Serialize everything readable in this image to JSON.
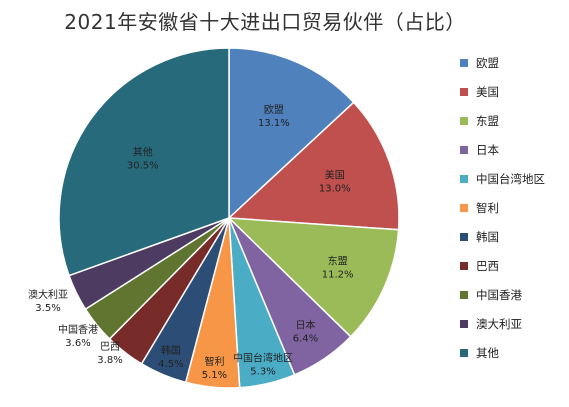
{
  "chart_data": {
    "type": "pie",
    "title": "2021年安徽省十大进出口贸易伙伴（占比）",
    "unit": "%",
    "slices": [
      {
        "name": "欧盟",
        "value": 13.1,
        "label": "13.1%",
        "color": "#4f81bd"
      },
      {
        "name": "美国",
        "value": 13.0,
        "label": "13.0%",
        "color": "#c0504d"
      },
      {
        "name": "东盟",
        "value": 11.2,
        "label": "11.2%",
        "color": "#9bbb59"
      },
      {
        "name": "日本",
        "value": 6.4,
        "label": "6.4%",
        "color": "#8064a2"
      },
      {
        "name": "中国台湾地区",
        "value": 5.3,
        "label": "5.3%",
        "color": "#4bacc6"
      },
      {
        "name": "智利",
        "value": 5.1,
        "label": "5.1%",
        "color": "#f79646"
      },
      {
        "name": "韩国",
        "value": 4.5,
        "label": "4.5%",
        "color": "#2c4d75"
      },
      {
        "name": "巴西",
        "value": 3.8,
        "label": "3.8%",
        "color": "#772c2a"
      },
      {
        "name": "中国香港",
        "value": 3.6,
        "label": "3.6%",
        "color": "#5f7530"
      },
      {
        "name": "澳大利亚",
        "value": 3.5,
        "label": "3.5%",
        "color": "#4d3b62"
      },
      {
        "name": "其他",
        "value": 30.5,
        "label": "30.5%",
        "color": "#276a7c"
      }
    ],
    "legend_position": "right"
  }
}
